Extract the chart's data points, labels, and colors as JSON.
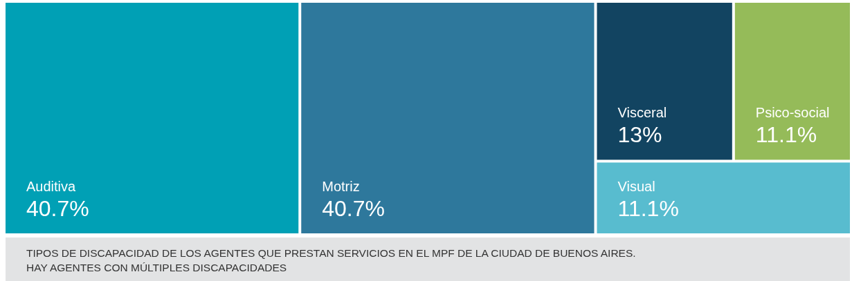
{
  "chart_data": {
    "type": "other",
    "categories": [
      "Auditiva",
      "Motriz",
      "Visceral",
      "Psico-social",
      "Visual"
    ],
    "values": [
      40.7,
      40.7,
      13,
      11.1,
      11.1
    ],
    "value_labels": [
      "40.7%",
      "40.7%",
      "13%",
      "11.1%",
      "11.1%"
    ],
    "colors": [
      "#00a0b5",
      "#2e789c",
      "#124461",
      "#95bb59",
      "#58bccf"
    ],
    "annotations": [
      "TIPOS DE DISCAPACIDAD DE LOS AGENTES QUE PRESTAN SERVICIOS EN EL MPF DE LA CIUDAD DE BUENOS AIRES.",
      "HAY AGENTES CON MÚLTIPLES DISCAPACIDADES"
    ]
  }
}
